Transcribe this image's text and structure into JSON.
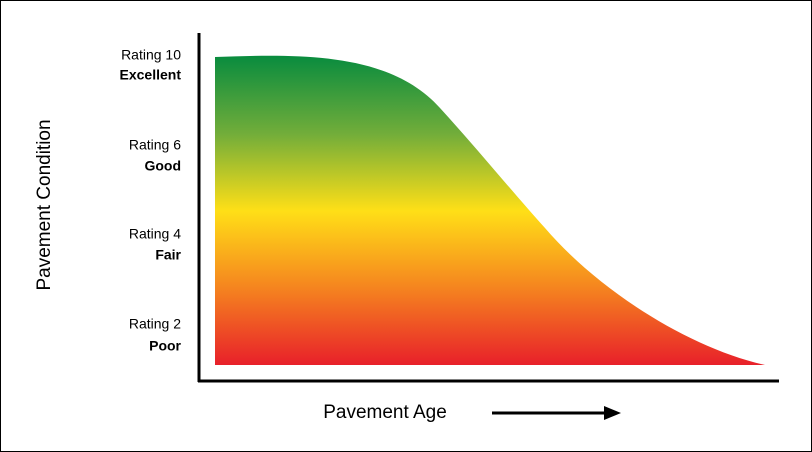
{
  "axis_title_y": "Pavement Condition",
  "axis_title_x": "Pavement Age",
  "ratings": [
    {
      "rating": "Rating 10",
      "condition": "Excellent"
    },
    {
      "rating": "Rating 6",
      "condition": "Good"
    },
    {
      "rating": "Rating 4",
      "condition": "Fair"
    },
    {
      "rating": "Rating 2",
      "condition": "Poor"
    }
  ]
}
